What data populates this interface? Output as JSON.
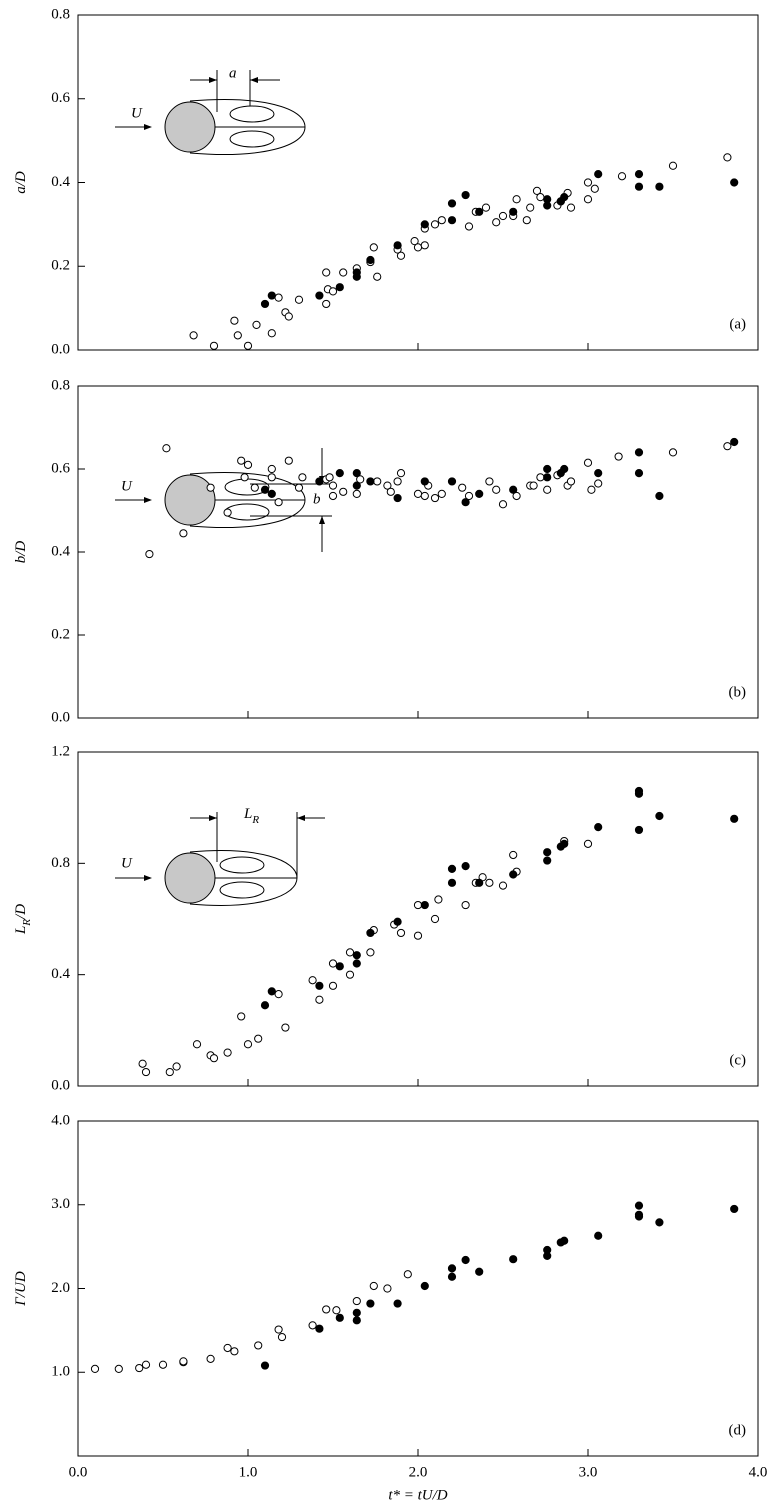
{
  "chart_data": [
    {
      "type": "scatter",
      "y_label": {
        "main": "a",
        "rest": "/D"
      },
      "panel_label": "(a)",
      "inset_labels": [
        "U",
        "a"
      ],
      "xlim": [
        0,
        4
      ],
      "ylim": [
        0,
        0.8
      ],
      "yticks": [
        {
          "value": 0,
          "label": "0.0"
        },
        {
          "value": 0.2,
          "label": "0.2"
        },
        {
          "value": 0.4,
          "label": "0.4"
        },
        {
          "value": 0.6,
          "label": "0.6"
        },
        {
          "value": 0.8,
          "label": "0.8"
        }
      ],
      "series": [
        {
          "marker": "open",
          "color": "#000000",
          "x": [
            0.68,
            0.8,
            0.92,
            0.94,
            1.0,
            1.05,
            1.14,
            1.18,
            1.22,
            1.24,
            1.3,
            1.46,
            1.46,
            1.47,
            1.5,
            1.56,
            1.64,
            1.72,
            1.74,
            1.76,
            1.88,
            1.9,
            1.98,
            2.0,
            2.04,
            2.04,
            2.1,
            2.14,
            2.3,
            2.34,
            2.4,
            2.46,
            2.5,
            2.56,
            2.58,
            2.64,
            2.66,
            2.7,
            2.72,
            2.82,
            2.84,
            2.88,
            2.9,
            3.0,
            3.0,
            3.04,
            3.2,
            3.5,
            3.82
          ],
          "values": [
            0.035,
            0.01,
            0.07,
            0.035,
            0.01,
            0.06,
            0.04,
            0.125,
            0.09,
            0.08,
            0.12,
            0.11,
            0.185,
            0.145,
            0.14,
            0.185,
            0.195,
            0.21,
            0.245,
            0.175,
            0.24,
            0.225,
            0.26,
            0.245,
            0.25,
            0.29,
            0.3,
            0.31,
            0.295,
            0.33,
            0.34,
            0.305,
            0.32,
            0.32,
            0.36,
            0.31,
            0.34,
            0.38,
            0.365,
            0.345,
            0.355,
            0.375,
            0.34,
            0.4,
            0.36,
            0.385,
            0.415,
            0.44,
            0.46
          ]
        },
        {
          "marker": "filled",
          "color": "#000000",
          "x": [
            1.1,
            1.14,
            1.42,
            1.54,
            1.64,
            1.64,
            1.72,
            1.88,
            2.04,
            2.2,
            2.2,
            2.28,
            2.36,
            2.56,
            2.76,
            2.76,
            2.84,
            2.86,
            3.06,
            3.3,
            3.3,
            3.42,
            3.86
          ],
          "values": [
            0.11,
            0.13,
            0.13,
            0.15,
            0.175,
            0.185,
            0.215,
            0.25,
            0.3,
            0.31,
            0.35,
            0.37,
            0.33,
            0.33,
            0.36,
            0.345,
            0.355,
            0.365,
            0.42,
            0.42,
            0.39,
            0.39,
            0.4
          ]
        }
      ]
    },
    {
      "type": "scatter",
      "y_label": {
        "main": "b",
        "rest": "/D"
      },
      "panel_label": "(b)",
      "inset_labels": [
        "U",
        "b"
      ],
      "xlim": [
        0,
        4
      ],
      "ylim": [
        0,
        0.8
      ],
      "yticks": [
        {
          "value": 0,
          "label": "0.0"
        },
        {
          "value": 0.2,
          "label": "0.2"
        },
        {
          "value": 0.4,
          "label": "0.4"
        },
        {
          "value": 0.6,
          "label": "0.6"
        },
        {
          "value": 0.8,
          "label": "0.8"
        }
      ],
      "series": [
        {
          "marker": "open",
          "color": "#000000",
          "x": [
            0.42,
            0.52,
            0.62,
            0.78,
            0.88,
            0.96,
            0.98,
            1.0,
            1.04,
            1.14,
            1.14,
            1.18,
            1.24,
            1.3,
            1.32,
            1.46,
            1.48,
            1.5,
            1.5,
            1.56,
            1.64,
            1.66,
            1.76,
            1.82,
            1.84,
            1.88,
            1.9,
            2.0,
            2.04,
            2.06,
            2.1,
            2.14,
            2.26,
            2.3,
            2.42,
            2.46,
            2.5,
            2.58,
            2.66,
            2.68,
            2.72,
            2.76,
            2.82,
            2.88,
            2.9,
            3.0,
            3.02,
            3.06,
            3.18,
            3.5,
            3.82
          ],
          "values": [
            0.395,
            0.65,
            0.445,
            0.555,
            0.495,
            0.62,
            0.58,
            0.61,
            0.555,
            0.6,
            0.58,
            0.52,
            0.62,
            0.555,
            0.58,
            0.575,
            0.58,
            0.535,
            0.56,
            0.545,
            0.54,
            0.575,
            0.57,
            0.56,
            0.545,
            0.57,
            0.59,
            0.54,
            0.535,
            0.56,
            0.53,
            0.54,
            0.555,
            0.535,
            0.57,
            0.55,
            0.515,
            0.535,
            0.56,
            0.56,
            0.58,
            0.55,
            0.585,
            0.56,
            0.57,
            0.615,
            0.55,
            0.565,
            0.63,
            0.64,
            0.655
          ]
        },
        {
          "marker": "filled",
          "color": "#000000",
          "x": [
            1.1,
            1.14,
            1.42,
            1.54,
            1.64,
            1.64,
            1.72,
            1.88,
            2.04,
            2.2,
            2.28,
            2.36,
            2.56,
            2.76,
            2.76,
            2.84,
            2.86,
            3.06,
            3.3,
            3.3,
            3.42,
            3.86
          ],
          "values": [
            0.55,
            0.54,
            0.57,
            0.59,
            0.59,
            0.56,
            0.57,
            0.53,
            0.57,
            0.57,
            0.52,
            0.54,
            0.55,
            0.6,
            0.58,
            0.59,
            0.6,
            0.59,
            0.64,
            0.59,
            0.535,
            0.665
          ]
        }
      ]
    },
    {
      "type": "scatter",
      "y_label": {
        "main": "L",
        "sub": "R",
        "rest": "/D"
      },
      "panel_label": "(c)",
      "inset_labels": [
        "U",
        "L",
        "R"
      ],
      "xlim": [
        0,
        4
      ],
      "ylim": [
        0,
        1.2
      ],
      "yticks": [
        {
          "value": 0,
          "label": "0.0"
        },
        {
          "value": 0.4,
          "label": "0.4"
        },
        {
          "value": 0.8,
          "label": "0.8"
        },
        {
          "value": 1.2,
          "label": "1.2"
        }
      ],
      "series": [
        {
          "marker": "open",
          "color": "#000000",
          "x": [
            0.38,
            0.4,
            0.54,
            0.58,
            0.7,
            0.78,
            0.8,
            0.88,
            0.96,
            1.0,
            1.06,
            1.18,
            1.22,
            1.38,
            1.42,
            1.5,
            1.5,
            1.6,
            1.6,
            1.72,
            1.74,
            1.86,
            1.9,
            2.0,
            2.0,
            2.1,
            2.12,
            2.28,
            2.34,
            2.38,
            2.42,
            2.5,
            2.56,
            2.58,
            2.86,
            3.0
          ],
          "values": [
            0.08,
            0.05,
            0.05,
            0.07,
            0.15,
            0.11,
            0.1,
            0.12,
            0.25,
            0.15,
            0.17,
            0.33,
            0.21,
            0.38,
            0.31,
            0.36,
            0.44,
            0.4,
            0.48,
            0.48,
            0.56,
            0.58,
            0.55,
            0.54,
            0.65,
            0.6,
            0.67,
            0.65,
            0.73,
            0.75,
            0.73,
            0.72,
            0.83,
            0.77,
            0.88,
            0.87
          ]
        },
        {
          "marker": "filled",
          "color": "#000000",
          "x": [
            1.1,
            1.14,
            1.42,
            1.54,
            1.64,
            1.64,
            1.72,
            1.88,
            2.04,
            2.2,
            2.2,
            2.28,
            2.36,
            2.56,
            2.76,
            2.76,
            2.84,
            2.86,
            3.06,
            3.3,
            3.3,
            3.3,
            3.42,
            3.86
          ],
          "values": [
            0.29,
            0.34,
            0.36,
            0.43,
            0.44,
            0.47,
            0.55,
            0.59,
            0.65,
            0.73,
            0.78,
            0.79,
            0.73,
            0.76,
            0.81,
            0.84,
            0.86,
            0.87,
            0.93,
            1.06,
            1.05,
            0.92,
            0.97,
            0.96
          ]
        }
      ]
    },
    {
      "type": "scatter",
      "y_label": {
        "main": "Γ",
        "rest": "/UD"
      },
      "panel_label": "(d)",
      "x_label": "t* = tU/D",
      "xlim": [
        0,
        4
      ],
      "ylim": [
        0,
        4
      ],
      "xticks": [
        {
          "value": 0,
          "label": "0.0"
        },
        {
          "value": 1,
          "label": "1.0"
        },
        {
          "value": 2,
          "label": "2.0"
        },
        {
          "value": 3,
          "label": "3.0"
        },
        {
          "value": 4,
          "label": "4.0"
        }
      ],
      "yticks": [
        {
          "value": 1,
          "label": "1.0"
        },
        {
          "value": 2,
          "label": "2.0"
        },
        {
          "value": 3,
          "label": "3.0"
        },
        {
          "value": 4,
          "label": "4.0"
        }
      ],
      "series": [
        {
          "marker": "open",
          "color": "#000000",
          "x": [
            0.1,
            0.24,
            0.36,
            0.4,
            0.5,
            0.62,
            0.62,
            0.78,
            0.88,
            0.92,
            1.06,
            1.18,
            1.2,
            1.38,
            1.46,
            1.52,
            1.64,
            1.74,
            1.82,
            1.94
          ],
          "values": [
            1.04,
            1.04,
            1.05,
            1.09,
            1.09,
            1.12,
            1.13,
            1.16,
            1.29,
            1.25,
            1.32,
            1.51,
            1.42,
            1.56,
            1.75,
            1.74,
            1.85,
            2.03,
            2.0,
            2.17
          ]
        },
        {
          "marker": "filled",
          "color": "#000000",
          "x": [
            1.1,
            1.42,
            1.54,
            1.64,
            1.64,
            1.72,
            1.88,
            2.04,
            2.2,
            2.2,
            2.28,
            2.36,
            2.56,
            2.76,
            2.76,
            2.84,
            2.86,
            3.06,
            3.3,
            3.3,
            3.3,
            3.42,
            3.86
          ],
          "values": [
            1.08,
            1.52,
            1.65,
            1.62,
            1.71,
            1.82,
            1.82,
            2.03,
            2.14,
            2.24,
            2.34,
            2.2,
            2.35,
            2.39,
            2.46,
            2.55,
            2.57,
            2.63,
            2.99,
            2.86,
            2.88,
            2.79,
            2.95
          ]
        }
      ]
    }
  ]
}
